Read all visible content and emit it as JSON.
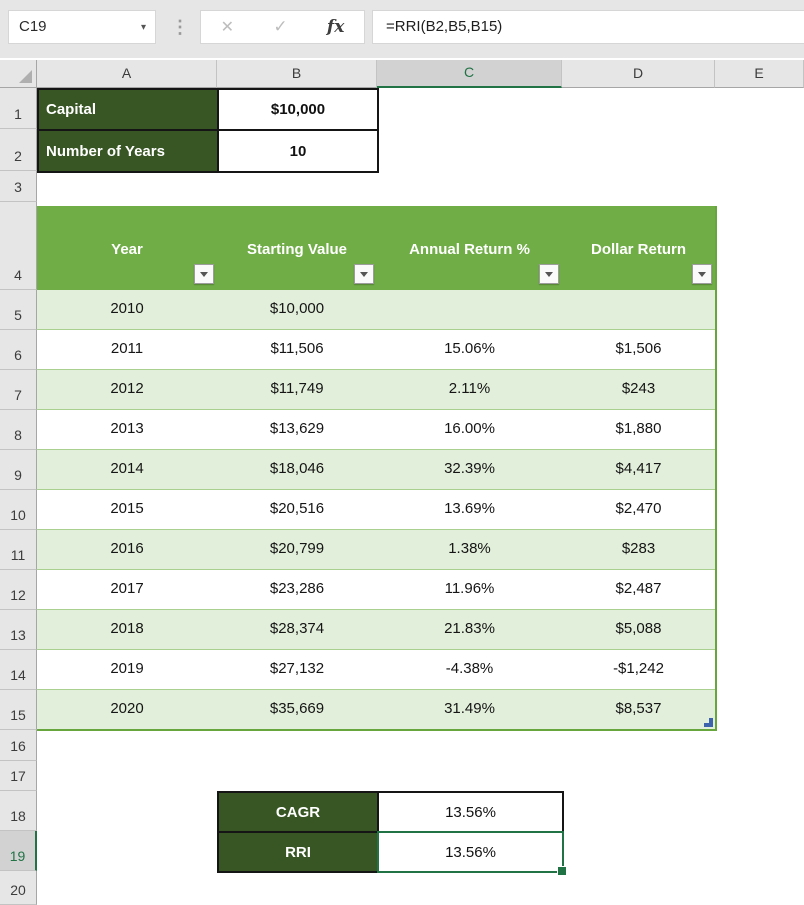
{
  "formula_bar": {
    "cell_reference": "C19",
    "formula": "=RRI(B2,B5,B15)"
  },
  "icons": {
    "name_box_dropdown": "▾",
    "drag_handle": "⋮",
    "cancel": "✕",
    "enter": "✓",
    "insert_function": "fx"
  },
  "grid": {
    "column_headers": [
      "A",
      "B",
      "C",
      "D",
      "E"
    ],
    "selected_column": "C",
    "row_headers": [
      "1",
      "2",
      "3",
      "4",
      "5",
      "6",
      "7",
      "8",
      "9",
      "10",
      "11",
      "12",
      "13",
      "14",
      "15",
      "16",
      "17",
      "18",
      "19",
      "20"
    ],
    "selected_row": "19"
  },
  "inputs_block": {
    "rows": [
      {
        "label": "Capital",
        "value": "$10,000"
      },
      {
        "label": "Number of Years",
        "value": "10"
      }
    ]
  },
  "table": {
    "headers": [
      "Year",
      "Starting Value",
      "Annual Return %",
      "Dollar Return"
    ],
    "rows": [
      [
        "2010",
        "$10,000",
        "",
        ""
      ],
      [
        "2011",
        "$11,506",
        "15.06%",
        "$1,506"
      ],
      [
        "2012",
        "$11,749",
        "2.11%",
        "$243"
      ],
      [
        "2013",
        "$13,629",
        "16.00%",
        "$1,880"
      ],
      [
        "2014",
        "$18,046",
        "32.39%",
        "$4,417"
      ],
      [
        "2015",
        "$20,516",
        "13.69%",
        "$2,470"
      ],
      [
        "2016",
        "$20,799",
        "1.38%",
        "$283"
      ],
      [
        "2017",
        "$23,286",
        "11.96%",
        "$2,487"
      ],
      [
        "2018",
        "$28,374",
        "21.83%",
        "$5,088"
      ],
      [
        "2019",
        "$27,132",
        "-4.38%",
        "-$1,242"
      ],
      [
        "2020",
        "$35,669",
        "31.49%",
        "$8,537"
      ]
    ]
  },
  "summary_block": {
    "rows": [
      {
        "label": "CAGR",
        "value": "13.56%"
      },
      {
        "label": "RRI",
        "value": "13.56%"
      }
    ]
  },
  "colors": {
    "table_header_green": "#70AD47",
    "banded_row_green": "#E2EFDA",
    "dark_label_green": "#375623",
    "selection_green": "#217346",
    "chrome_gray": "#E6E6E6"
  }
}
